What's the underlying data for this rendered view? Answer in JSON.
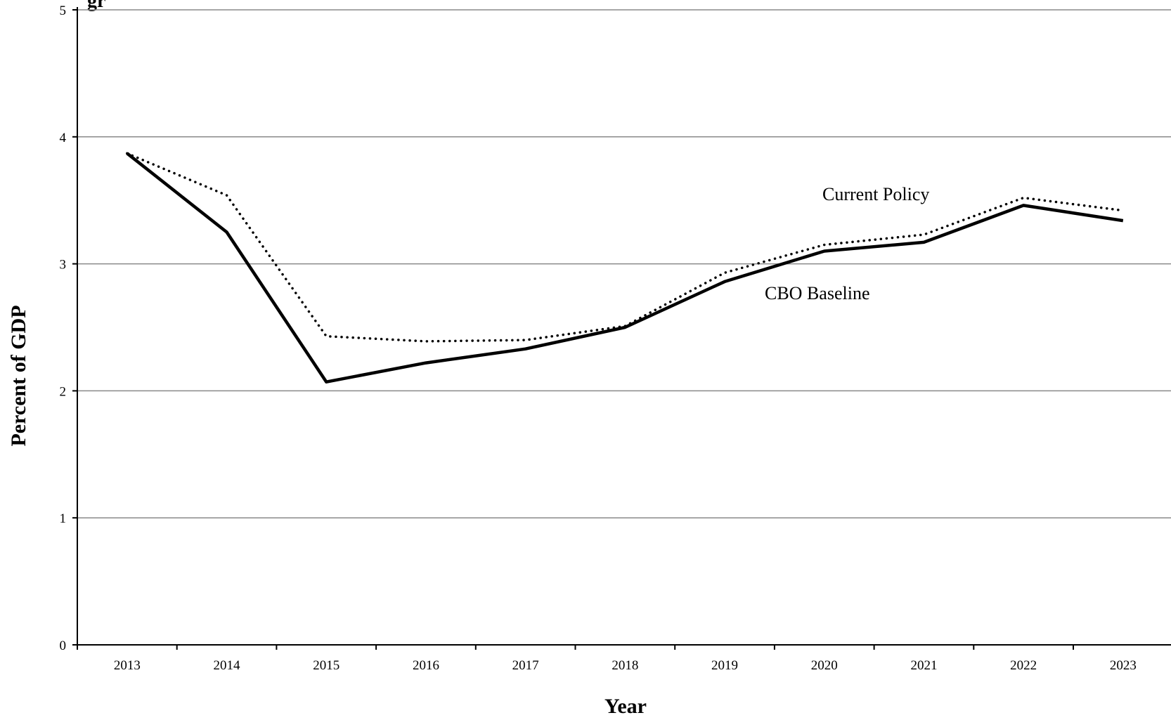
{
  "chart_data": {
    "type": "line",
    "title_fragment": "gr",
    "xlabel": "Year",
    "ylabel": "Percent of GDP",
    "ylim": [
      0,
      5
    ],
    "yticks": [
      0,
      1,
      2,
      3,
      4,
      5
    ],
    "grid": "horizontal",
    "x": [
      "2013",
      "2014",
      "2015",
      "2016",
      "2017",
      "2018",
      "2019",
      "2020",
      "2021",
      "2022",
      "2023"
    ],
    "series": [
      {
        "name": "CBO Baseline",
        "style": "solid",
        "color": "#000000",
        "values": [
          3.87,
          3.25,
          2.07,
          2.22,
          2.33,
          2.5,
          2.86,
          3.1,
          3.17,
          3.46,
          3.34
        ]
      },
      {
        "name": "Current Policy",
        "style": "dotted",
        "color": "#000000",
        "values": [
          3.87,
          3.54,
          2.43,
          2.39,
          2.4,
          2.51,
          2.93,
          3.15,
          3.23,
          3.52,
          3.42
        ]
      }
    ]
  }
}
